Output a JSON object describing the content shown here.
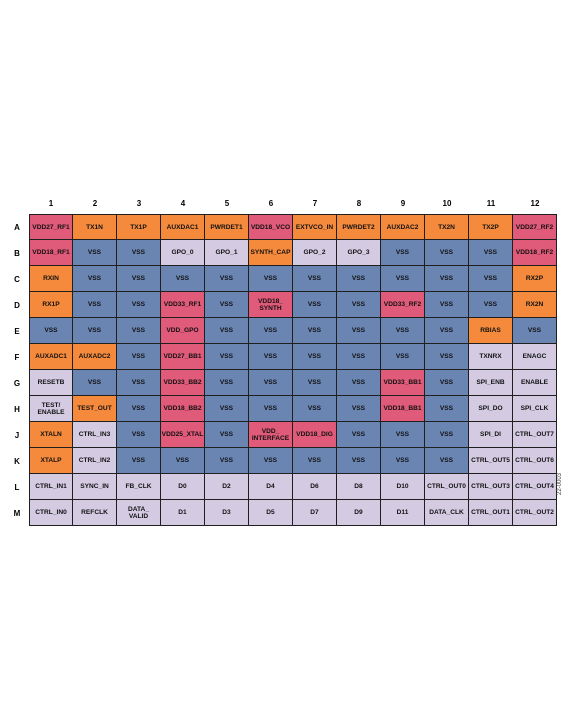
{
  "diagram": {
    "column_labels": [
      "1",
      "2",
      "3",
      "4",
      "5",
      "6",
      "7",
      "8",
      "9",
      "10",
      "11",
      "12"
    ],
    "row_labels": [
      "A",
      "B",
      "C",
      "D",
      "E",
      "F",
      "G",
      "H",
      "J",
      "K",
      "L",
      "M"
    ],
    "colors": {
      "O": "#f58a3c",
      "R": "#e05a7a",
      "V": "#6b85b3",
      "L": "#d4cbe3"
    },
    "rows": [
      [
        [
          "VDD27_RF1",
          "R"
        ],
        [
          "TX1N",
          "O"
        ],
        [
          "TX1P",
          "O"
        ],
        [
          "AUXDAC1",
          "O"
        ],
        [
          "PWRDET1",
          "O"
        ],
        [
          "VDD18_VCO",
          "R"
        ],
        [
          "EXTVCO_IN",
          "O"
        ],
        [
          "PWRDET2",
          "O"
        ],
        [
          "AUXDAC2",
          "O"
        ],
        [
          "TX2N",
          "O"
        ],
        [
          "TX2P",
          "O"
        ],
        [
          "VDD27_RF2",
          "R"
        ]
      ],
      [
        [
          "VDD18_RF1",
          "R"
        ],
        [
          "VSS",
          "V"
        ],
        [
          "VSS",
          "V"
        ],
        [
          "GPO_0",
          "L"
        ],
        [
          "GPO_1",
          "L"
        ],
        [
          "SYNTH_CAP",
          "O"
        ],
        [
          "GPO_2",
          "L"
        ],
        [
          "GPO_3",
          "L"
        ],
        [
          "VSS",
          "V"
        ],
        [
          "VSS",
          "V"
        ],
        [
          "VSS",
          "V"
        ],
        [
          "VDD18_RF2",
          "R"
        ]
      ],
      [
        [
          "RXIN",
          "O"
        ],
        [
          "VSS",
          "V"
        ],
        [
          "VSS",
          "V"
        ],
        [
          "VSS",
          "V"
        ],
        [
          "VSS",
          "V"
        ],
        [
          "VSS",
          "V"
        ],
        [
          "VSS",
          "V"
        ],
        [
          "VSS",
          "V"
        ],
        [
          "VSS",
          "V"
        ],
        [
          "VSS",
          "V"
        ],
        [
          "VSS",
          "V"
        ],
        [
          "RX2P",
          "O"
        ]
      ],
      [
        [
          "RX1P",
          "O"
        ],
        [
          "VSS",
          "V"
        ],
        [
          "VSS",
          "V"
        ],
        [
          "VDD33_RF1",
          "R"
        ],
        [
          "VSS",
          "V"
        ],
        [
          "VDD18_\nSYNTH",
          "R"
        ],
        [
          "VSS",
          "V"
        ],
        [
          "VSS",
          "V"
        ],
        [
          "VDD33_RF2",
          "R"
        ],
        [
          "VSS",
          "V"
        ],
        [
          "VSS",
          "V"
        ],
        [
          "RX2N",
          "O"
        ]
      ],
      [
        [
          "VSS",
          "V"
        ],
        [
          "VSS",
          "V"
        ],
        [
          "VSS",
          "V"
        ],
        [
          "VDD_GPO",
          "R"
        ],
        [
          "VSS",
          "V"
        ],
        [
          "VSS",
          "V"
        ],
        [
          "VSS",
          "V"
        ],
        [
          "VSS",
          "V"
        ],
        [
          "VSS",
          "V"
        ],
        [
          "VSS",
          "V"
        ],
        [
          "RBIAS",
          "O"
        ],
        [
          "VSS",
          "V"
        ]
      ],
      [
        [
          "AUXADC1",
          "O"
        ],
        [
          "AUXADC2",
          "O"
        ],
        [
          "VSS",
          "V"
        ],
        [
          "VDD27_BB1",
          "R"
        ],
        [
          "VSS",
          "V"
        ],
        [
          "VSS",
          "V"
        ],
        [
          "VSS",
          "V"
        ],
        [
          "VSS",
          "V"
        ],
        [
          "VSS",
          "V"
        ],
        [
          "VSS",
          "V"
        ],
        [
          "TXNRX",
          "L"
        ],
        [
          "ENAGC",
          "L"
        ]
      ],
      [
        [
          "RESETB",
          "L"
        ],
        [
          "VSS",
          "V"
        ],
        [
          "VSS",
          "V"
        ],
        [
          "VDD33_BB2",
          "R"
        ],
        [
          "VSS",
          "V"
        ],
        [
          "VSS",
          "V"
        ],
        [
          "VSS",
          "V"
        ],
        [
          "VSS",
          "V"
        ],
        [
          "VDD33_BB1",
          "R"
        ],
        [
          "VSS",
          "V"
        ],
        [
          "SPI_ENB",
          "L"
        ],
        [
          "ENABLE",
          "L"
        ]
      ],
      [
        [
          "TEST/\nENABLE",
          "L"
        ],
        [
          "TEST_OUT",
          "O"
        ],
        [
          "VSS",
          "V"
        ],
        [
          "VDD18_BB2",
          "R"
        ],
        [
          "VSS",
          "V"
        ],
        [
          "VSS",
          "V"
        ],
        [
          "VSS",
          "V"
        ],
        [
          "VSS",
          "V"
        ],
        [
          "VDD18_BB1",
          "R"
        ],
        [
          "VSS",
          "V"
        ],
        [
          "SPI_DO",
          "L"
        ],
        [
          "SPI_CLK",
          "L"
        ]
      ],
      [
        [
          "XTALN",
          "O"
        ],
        [
          "CTRL_IN3",
          "L"
        ],
        [
          "VSS",
          "V"
        ],
        [
          "VDD25_XTAL",
          "R"
        ],
        [
          "VSS",
          "V"
        ],
        [
          "VDD_\nINTERFACE",
          "R"
        ],
        [
          "VDD18_DIG",
          "R"
        ],
        [
          "VSS",
          "V"
        ],
        [
          "VSS",
          "V"
        ],
        [
          "VSS",
          "V"
        ],
        [
          "SPI_DI",
          "L"
        ],
        [
          "CTRL_OUT7",
          "L"
        ]
      ],
      [
        [
          "XTALP",
          "O"
        ],
        [
          "CTRL_IN2",
          "L"
        ],
        [
          "VSS",
          "V"
        ],
        [
          "VSS",
          "V"
        ],
        [
          "VSS",
          "V"
        ],
        [
          "VSS",
          "V"
        ],
        [
          "VSS",
          "V"
        ],
        [
          "VSS",
          "V"
        ],
        [
          "VSS",
          "V"
        ],
        [
          "VSS",
          "V"
        ],
        [
          "CTRL_OUT5",
          "L"
        ],
        [
          "CTRL_OUT6",
          "L"
        ]
      ],
      [
        [
          "CTRL_IN1",
          "L"
        ],
        [
          "SYNC_IN",
          "L"
        ],
        [
          "FB_CLK",
          "L"
        ],
        [
          "D0",
          "L"
        ],
        [
          "D2",
          "L"
        ],
        [
          "D4",
          "L"
        ],
        [
          "D6",
          "L"
        ],
        [
          "D8",
          "L"
        ],
        [
          "D10",
          "L"
        ],
        [
          "CTRL_OUT0",
          "L"
        ],
        [
          "CTRL_OUT3",
          "L"
        ],
        [
          "CTRL_OUT4",
          "L"
        ]
      ],
      [
        [
          "CTRL_IN0",
          "L"
        ],
        [
          "REFCLK",
          "L"
        ],
        [
          "DATA_\nVALID",
          "L"
        ],
        [
          "D1",
          "L"
        ],
        [
          "D3",
          "L"
        ],
        [
          "D5",
          "L"
        ],
        [
          "D7",
          "L"
        ],
        [
          "D9",
          "L"
        ],
        [
          "D11",
          "L"
        ],
        [
          "DATA_CLK",
          "L"
        ],
        [
          "CTRL_OUT1",
          "L"
        ],
        [
          "CTRL_OUT2",
          "L"
        ]
      ]
    ],
    "figure_id": "22-0003"
  }
}
